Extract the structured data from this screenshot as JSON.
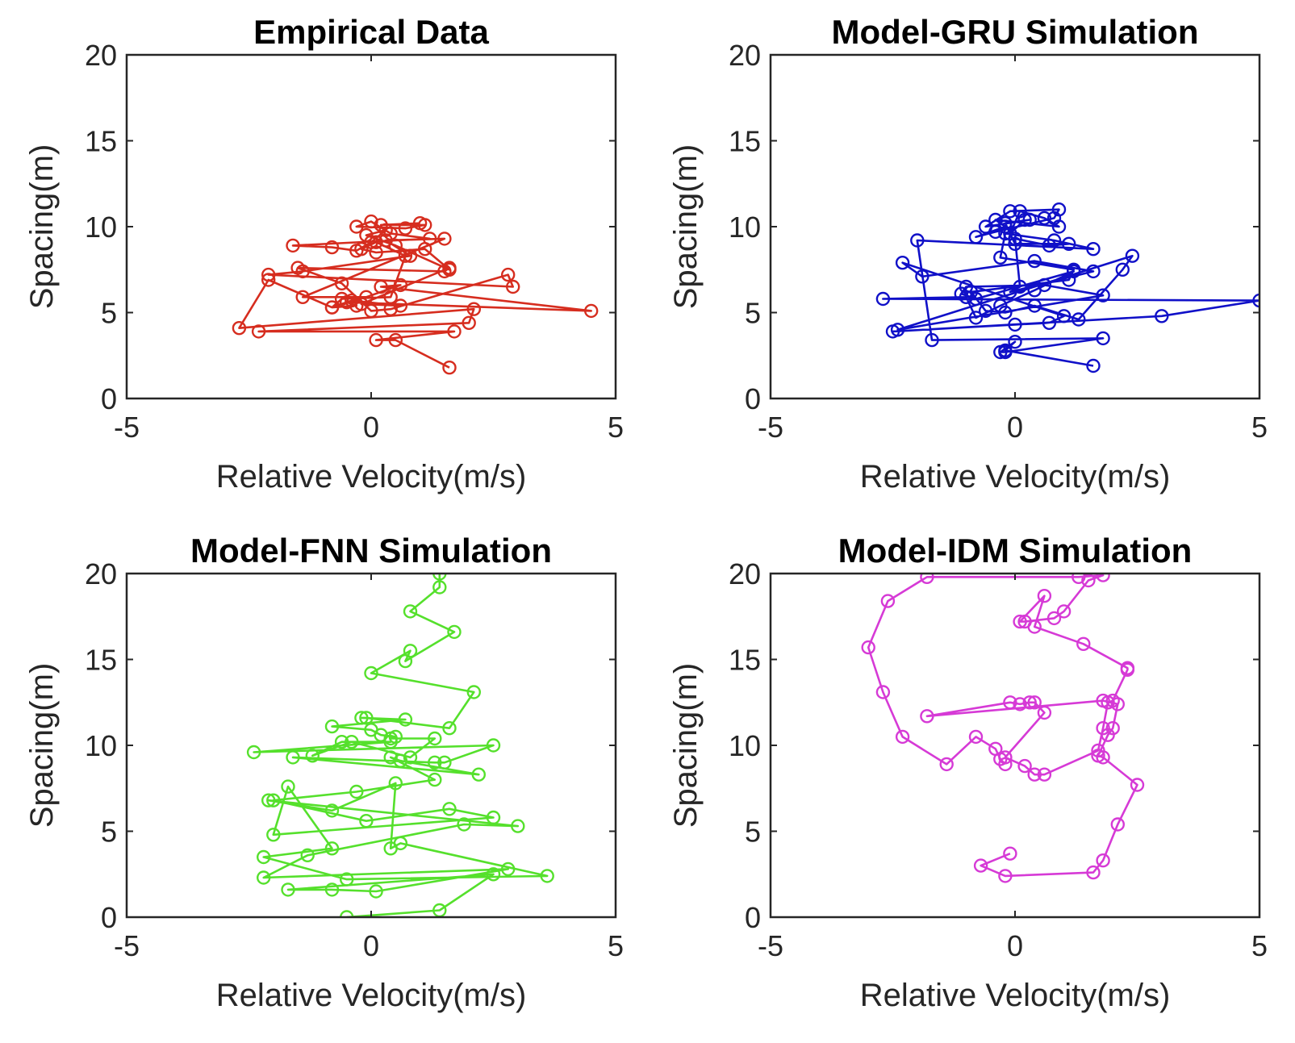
{
  "chart_data": [
    {
      "type": "line",
      "title": "Empirical Data",
      "xlabel": "Relative Velocity(m/s)",
      "ylabel": "Spacing(m)",
      "xlim": [
        -5,
        5
      ],
      "ylim": [
        0,
        20
      ],
      "xticks": [
        "-5",
        "0",
        "5"
      ],
      "yticks": [
        "0",
        "5",
        "10",
        "15",
        "20"
      ],
      "marker": "circle",
      "color": "#d62d1f",
      "series": [
        {
          "x": [
            1.6,
            0.5,
            0.1,
            1.7,
            -2.3,
            2.0,
            2.1,
            -2.7,
            -2.1,
            -0.8,
            -0.4,
            0.6,
            -0.2,
            1.6,
            1.5,
            -1.5,
            -0.6,
            0.0,
            0.4,
            2.8,
            2.9,
            -2.1,
            -1.4,
            0.8,
            0.3,
            1.5,
            -1.4,
            -0.1,
            0.6,
            0.2,
            4.5,
            -0.5,
            -0.3,
            -0.8,
            -0.6,
            0.4,
            0.7,
            0.1,
            -0.2,
            0.1,
            1.1,
            1.6,
            0.5,
            -0.1,
            0.3,
            0.0,
            -0.3,
            -0.8,
            -1.6,
            1.2,
            0.4,
            0.0,
            -0.3,
            0.7,
            1.1,
            0.2,
            1.0
          ],
          "y": [
            1.8,
            3.4,
            3.4,
            3.9,
            3.9,
            4.4,
            5.2,
            4.1,
            6.9,
            5.3,
            5.7,
            5.4,
            5.5,
            7.6,
            7.4,
            7.6,
            6.7,
            5.1,
            5.2,
            7.2,
            6.5,
            7.2,
            7.4,
            8.3,
            9.2,
            9.3,
            5.9,
            5.9,
            6.6,
            6.5,
            5.1,
            5.6,
            5.4,
            5.3,
            5.8,
            5.9,
            8.3,
            9.1,
            8.7,
            8.5,
            8.7,
            7.5,
            8.9,
            9.5,
            9.8,
            9.1,
            8.6,
            8.8,
            8.9,
            9.3,
            9.6,
            10.3,
            10.0,
            9.9,
            10.1,
            10.1,
            10.2
          ]
        }
      ]
    },
    {
      "type": "line",
      "title": "Model-GRU Simulation",
      "xlabel": "Relative Velocity(m/s)",
      "ylabel": "Spacing(m)",
      "xlim": [
        -5,
        5
      ],
      "ylim": [
        0,
        20
      ],
      "xticks": [
        "-5",
        "0",
        "5"
      ],
      "yticks": [
        "0",
        "5",
        "10",
        "15",
        "20"
      ],
      "marker": "circle",
      "color": "#1010c8",
      "series": [
        {
          "x": [
            1.6,
            -0.2,
            0.0,
            -0.3,
            -0.2,
            1.8,
            -1.7,
            -2.0,
            1.6,
            0.8,
            -0.2,
            -0.3,
            1.2,
            1.1,
            -0.9,
            -0.6,
            -0.2,
            0.4,
            1.3,
            2.2,
            2.4,
            -2.4,
            1.8,
            0.6,
            -1.0,
            -1.1,
            -0.8,
            1.2,
            0.4,
            -0.3,
            -0.8,
            -1.0,
            -2.7,
            5.0,
            3.0,
            -2.5,
            0.0,
            0.7,
            1.0,
            -2.3,
            -1.9,
            0.4,
            1.6,
            -0.1,
            0.1,
            0.0,
            0.7,
            1.1,
            0.0,
            -0.2,
            0.3,
            -0.6,
            -0.1,
            0.9,
            0.8,
            -0.4,
            -0.8,
            -0.2,
            -0.4,
            0.9,
            0.6,
            0.1,
            -0.1,
            0.2
          ],
          "y": [
            1.9,
            2.8,
            3.3,
            2.7,
            2.7,
            3.5,
            3.4,
            9.2,
            8.7,
            9.2,
            9.6,
            8.2,
            7.5,
            6.9,
            6.2,
            5.1,
            5.0,
            5.4,
            4.6,
            7.5,
            8.3,
            4.0,
            6.0,
            6.6,
            6.5,
            6.1,
            5.8,
            7.4,
            6.3,
            5.4,
            4.7,
            5.9,
            5.8,
            5.7,
            4.8,
            3.9,
            4.3,
            4.4,
            4.8,
            7.9,
            7.1,
            8.0,
            7.4,
            6.2,
            6.5,
            9.3,
            8.9,
            9.0,
            9.0,
            10.2,
            10.4,
            10.0,
            10.9,
            11.0,
            10.5,
            9.7,
            9.4,
            10.0,
            10.4,
            10.0,
            10.5,
            10.9,
            9.6,
            10.4
          ]
        }
      ]
    },
    {
      "type": "line",
      "title": "Model-FNN Simulation",
      "xlabel": "Relative Velocity(m/s)",
      "ylabel": "Spacing(m)",
      "xlim": [
        -5,
        5
      ],
      "ylim": [
        0,
        20
      ],
      "xticks": [
        "-5",
        "0",
        "5"
      ],
      "yticks": [
        "0",
        "5",
        "10",
        "15",
        "20"
      ],
      "marker": "circle",
      "color": "#55e02c",
      "series": [
        {
          "x": [
            -0.5,
            1.4,
            2.5,
            -1.7,
            -0.8,
            0.1,
            2.8,
            -2.2,
            -1.3,
            1.9,
            3.0,
            -2.1,
            -0.8,
            0.5,
            0.4,
            0.6,
            3.6,
            -0.5,
            -2.2,
            -0.8,
            -1.7,
            -2.0,
            2.5,
            1.6,
            -0.1,
            -2.0,
            -0.3,
            1.3,
            0.4,
            0.6,
            2.2,
            -1.6,
            1.3,
            1.5,
            2.5,
            -2.4,
            0.4,
            -0.6,
            -1.2,
            -0.4,
            0.8,
            1.3,
            0.4,
            0.5,
            0.2,
            0.0,
            -0.8,
            0.7,
            -0.2,
            -0.1,
            1.6,
            2.1,
            0.0,
            0.8,
            0.7,
            1.7,
            0.8,
            1.4,
            1.4
          ],
          "y": [
            0.0,
            0.4,
            2.5,
            1.6,
            1.6,
            1.5,
            2.8,
            2.3,
            3.6,
            5.4,
            5.3,
            6.8,
            6.2,
            7.8,
            4.0,
            4.3,
            2.4,
            2.2,
            3.5,
            4.0,
            7.6,
            4.8,
            5.8,
            6.3,
            5.6,
            6.8,
            7.3,
            8.0,
            9.3,
            9.1,
            8.3,
            9.3,
            9.0,
            9.0,
            10.0,
            9.6,
            10.2,
            10.2,
            9.4,
            10.2,
            9.3,
            10.4,
            10.4,
            10.5,
            10.6,
            10.9,
            11.1,
            11.5,
            11.6,
            11.6,
            11.0,
            13.1,
            14.2,
            15.5,
            14.9,
            16.6,
            17.8,
            19.2,
            20.0
          ]
        }
      ]
    },
    {
      "type": "line",
      "title": "Model-IDM Simulation",
      "xlabel": "Relative Velocity(m/s)",
      "ylabel": "Spacing(m)",
      "xlim": [
        -5,
        5
      ],
      "ylim": [
        0,
        20
      ],
      "xticks": [
        "-5",
        "0",
        "5"
      ],
      "yticks": [
        "0",
        "5",
        "10",
        "15",
        "20"
      ],
      "marker": "circle",
      "color": "#d63ad6",
      "series": [
        {
          "x": [
            -0.1,
            -0.7,
            -0.2,
            1.6,
            1.8,
            2.1,
            2.5,
            1.8,
            1.7,
            1.9,
            2.0,
            2.1,
            1.8,
            -1.8,
            -0.1,
            0.1,
            0.3,
            0.4,
            0.6,
            -0.2,
            0.2,
            0.4,
            0.6,
            1.7,
            1.8,
            1.9,
            2.0,
            2.3,
            2.3,
            1.4,
            0.4,
            0.6,
            0.1,
            0.2,
            0.8,
            1.0,
            1.5,
            1.8,
            1.3,
            -1.8,
            -2.6,
            -3.0,
            -2.7,
            -2.3,
            -1.4,
            -0.8,
            -0.4,
            -0.3,
            -0.2
          ],
          "y": [
            3.7,
            3.0,
            2.4,
            2.6,
            3.3,
            5.4,
            7.7,
            9.3,
            9.4,
            10.6,
            11.0,
            12.4,
            12.6,
            11.7,
            12.5,
            12.4,
            12.5,
            12.5,
            11.9,
            9.3,
            8.8,
            8.3,
            8.3,
            9.7,
            11.0,
            12.5,
            12.6,
            14.4,
            14.5,
            15.9,
            16.9,
            18.7,
            17.2,
            17.2,
            17.4,
            17.8,
            19.6,
            19.9,
            19.8,
            19.8,
            18.4,
            15.7,
            13.1,
            10.5,
            8.9,
            10.5,
            9.8,
            9.2,
            8.9
          ]
        }
      ]
    }
  ]
}
